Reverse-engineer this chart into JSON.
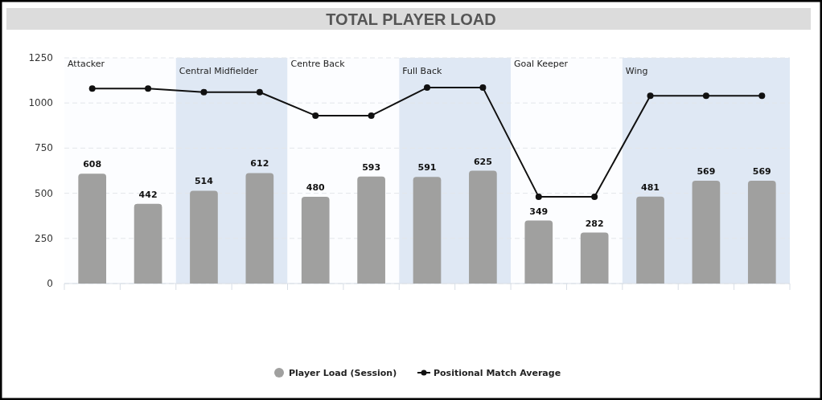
{
  "chart_data": [
    {
      "type": "bar",
      "title": "TOTAL PLAYER LOAD",
      "categories": [
        null,
        null,
        null,
        null,
        null,
        null,
        null,
        null,
        null,
        null,
        null,
        null,
        null
      ],
      "ylim": [
        0,
        1250
      ],
      "yticks": [
        0,
        250,
        500,
        750,
        1000,
        1250
      ],
      "grid": "y",
      "legend": "bottom",
      "annotations": [
        "Attacker",
        "Central Midfielder",
        "Centre Back",
        "Full Back",
        "Goal Keeper",
        "Wing"
      ],
      "series": [
        {
          "name": "Player Load (Session)",
          "color": "#a0a09f",
          "values": [
            608,
            442,
            514,
            612,
            480,
            593,
            591,
            625,
            349,
            282,
            481,
            569,
            569
          ],
          "value_labels": [
            "608",
            "442",
            "514",
            "612",
            "480",
            "593",
            "591",
            "625",
            "349",
            "282",
            "481",
            "569",
            "569"
          ]
        }
      ]
    },
    {
      "type": "line",
      "categories": [
        null,
        null,
        null,
        null,
        null,
        null,
        null,
        null,
        null,
        null,
        null,
        null,
        null
      ],
      "ylim": [
        0,
        1250
      ],
      "marker": "circle",
      "legend": "bottom",
      "series": [
        {
          "name": "Positional Match Average",
          "color": "#111111",
          "values": [
            1080,
            1080,
            1060,
            1060,
            930,
            930,
            1085,
            1085,
            480,
            480,
            1040,
            1040,
            1040
          ]
        }
      ]
    }
  ]
}
